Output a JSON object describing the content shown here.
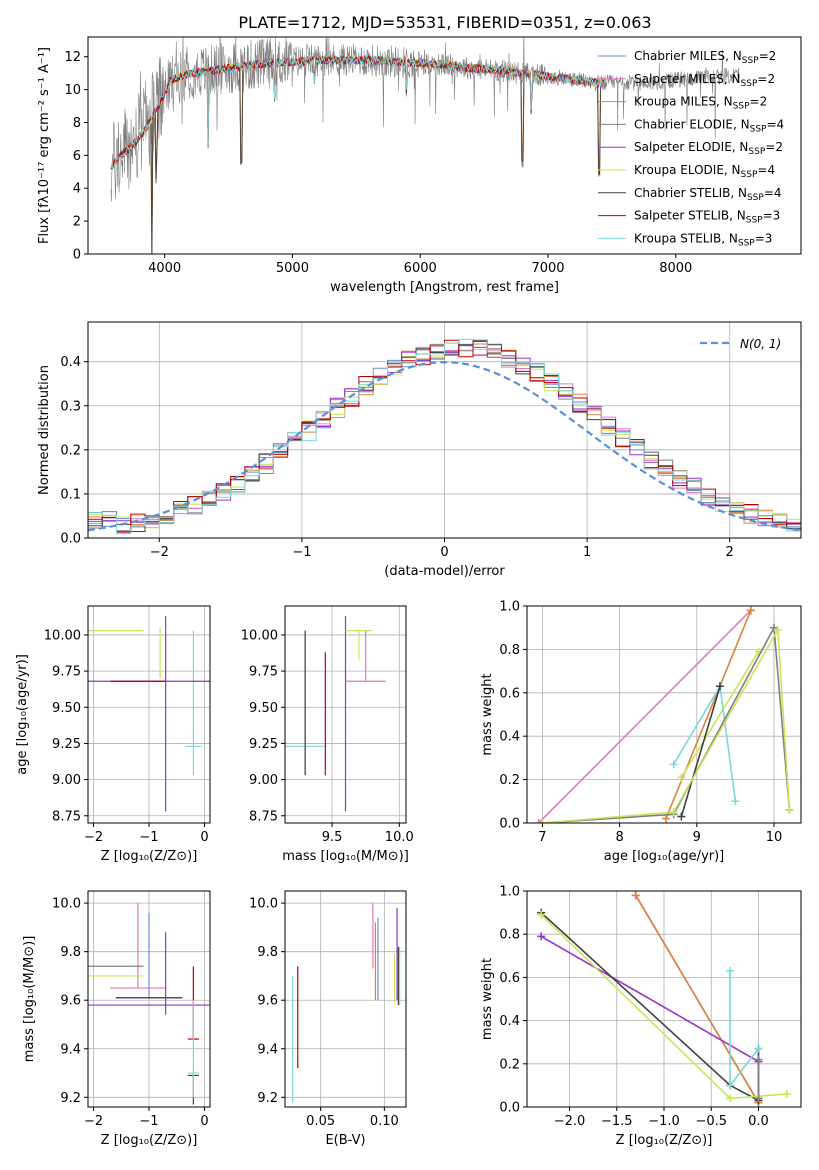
{
  "figure": {
    "title": "PLATE=1712, MJD=53531, FIBERID=0351, z=0.063"
  },
  "models": [
    {
      "name": "Chabrier MILES, N$_{SSP}$=2",
      "color": "#6a8fd4"
    },
    {
      "name": "Salpeter MILES, N$_{SSP}$=2",
      "color": "#e377c2"
    },
    {
      "name": "Kroupa MILES, N$_{SSP}$=2",
      "color": "#d9843b"
    },
    {
      "name": "Chabrier ELODIE, N$_{SSP}$=4",
      "color": "#7f7f7f"
    },
    {
      "name": "Salpeter ELODIE, N$_{SSP}$=2",
      "color": "#9932cc"
    },
    {
      "name": "Kroupa ELODIE, N$_{SSP}$=4",
      "color": "#c7e55a"
    },
    {
      "name": "Chabrier STELIB, N$_{SSP}$=4",
      "color": "#404040"
    },
    {
      "name": "Salpeter STELIB, N$_{SSP}$=3",
      "color": "#c00000"
    },
    {
      "name": "Kroupa STELIB, N$_{SSP}$=3",
      "color": "#7fd6dc"
    }
  ],
  "legend_labels": [
    {
      "base": "Chabrier MILES, N",
      "sub": "SSP",
      "tail": "=2"
    },
    {
      "base": "Salpeter MILES, N",
      "sub": "SSP",
      "tail": "=2"
    },
    {
      "base": "Kroupa MILES, N",
      "sub": "SSP",
      "tail": "=2"
    },
    {
      "base": "Chabrier ELODIE, N",
      "sub": "SSP",
      "tail": "=4"
    },
    {
      "base": "Salpeter ELODIE, N",
      "sub": "SSP",
      "tail": "=2"
    },
    {
      "base": "Kroupa ELODIE, N",
      "sub": "SSP",
      "tail": "=4"
    },
    {
      "base": "Chabrier STELIB, N",
      "sub": "SSP",
      "tail": "=4"
    },
    {
      "base": "Salpeter STELIB, N",
      "sub": "SSP",
      "tail": "=3"
    },
    {
      "base": "Kroupa STELIB, N",
      "sub": "SSP",
      "tail": "=3"
    }
  ],
  "chart_data": [
    {
      "id": "spectrum",
      "type": "line",
      "xlabel": "wavelength [Angstrom, rest frame]",
      "ylabel": "Flux [fλ10⁻¹⁷ erg cm⁻² s⁻¹ A⁻¹]",
      "xlim": [
        3400,
        8980
      ],
      "ylim": [
        0,
        13.2
      ],
      "xticks": [
        4000,
        5000,
        6000,
        7000,
        8000
      ],
      "yticks": [
        0,
        2,
        4,
        6,
        8,
        10,
        12
      ],
      "data_range": [
        3580,
        8500
      ],
      "continuum": {
        "x": [
          3580,
          3650,
          3750,
          3850,
          3950,
          4050,
          4200,
          4400,
          4600,
          4800,
          5000,
          5200,
          5400,
          5600,
          5800,
          6000,
          6200,
          6400,
          6600,
          6800,
          7000,
          7200,
          7400,
          7600,
          7800,
          8000,
          8200,
          8500
        ],
        "y": [
          5.2,
          6.0,
          6.6,
          7.6,
          9.0,
          10.6,
          11.0,
          11.2,
          11.4,
          11.6,
          11.7,
          11.8,
          11.8,
          11.8,
          11.7,
          11.6,
          11.5,
          11.3,
          11.2,
          11.0,
          10.8,
          10.6,
          10.4,
          10.4,
          10.4,
          10.6,
          10.7,
          10.9
        ]
      },
      "model_dips": [
        {
          "x": 3900,
          "depth": 13.0
        },
        {
          "x": 3935,
          "depth": 7.0
        },
        {
          "x": 4340,
          "depth": 4.5
        },
        {
          "x": 4600,
          "depth": 11.5
        },
        {
          "x": 4861,
          "depth": 2.5
        },
        {
          "x": 5175,
          "depth": 2.0
        },
        {
          "x": 5890,
          "depth": 2.5
        },
        {
          "x": 6800,
          "depth": 11.0
        },
        {
          "x": 6870,
          "depth": 3.0
        },
        {
          "x": 7400,
          "depth": 11.0
        },
        {
          "x": 7600,
          "depth": 2.0
        }
      ]
    },
    {
      "id": "residuals",
      "type": "histogram",
      "xlabel": "(data-model)/error",
      "ylabel": "Normed distribution",
      "xlim": [
        -2.5,
        2.5
      ],
      "ylim": [
        0,
        0.49
      ],
      "xticks": [
        -2,
        -1,
        0,
        1,
        2
      ],
      "yticks": [
        0.0,
        0.1,
        0.2,
        0.3,
        0.4
      ],
      "bin_width": 0.1,
      "gaussian_label": "𝒩(0, 1)",
      "gaussian_label_text": "N(0, 1)"
    },
    {
      "id": "age-vs-Z",
      "type": "errorbar",
      "xlabel": "Z [log₁₀(Z/Z⊙)]",
      "ylabel": "age  [log₁₀(age/yr)]",
      "xlim": [
        -2.1,
        0.1
      ],
      "ylim": [
        8.7,
        10.2
      ],
      "xticks": [
        -2,
        -1,
        0
      ],
      "yticks": [
        8.75,
        9.0,
        9.25,
        9.5,
        9.75,
        10.0
      ],
      "points": [
        {
          "m": 8,
          "x": -0.2,
          "y": 9.23,
          "xe": 0.15,
          "ye": [
            0.2,
            0.8
          ]
        },
        {
          "m": 5,
          "x": -1.9,
          "y": 10.03,
          "xe": 0.8,
          "ye": [
            0.0,
            0.0
          ]
        },
        {
          "m": 1,
          "x": -1.3,
          "y": 10.03,
          "xe": 0.0,
          "ye": [
            0.0,
            0.0
          ]
        },
        {
          "m": 2,
          "x": -1.1,
          "y": 10.03,
          "xe": 0.0,
          "ye": [
            0.0,
            0.0
          ]
        },
        {
          "m": 4,
          "x": -0.7,
          "y": 9.68,
          "xe": 1.5,
          "ye": [
            0.9,
            0.45
          ]
        },
        {
          "m": 7,
          "x": -1.2,
          "y": 9.68,
          "xe": 0.5,
          "ye": [
            0.0,
            0.0
          ]
        },
        {
          "m": 5,
          "x": -0.8,
          "y": 9.85,
          "xe": 0.0,
          "ye": [
            0.15,
            0.2
          ]
        }
      ]
    },
    {
      "id": "age-vs-mass",
      "type": "errorbar",
      "xlabel": "mass [log₁₀(M/M⊙)]",
      "ylabel": "",
      "xlim": [
        9.15,
        10.05
      ],
      "ylim": [
        8.7,
        10.2
      ],
      "xticks": [
        9.5,
        10.0
      ],
      "yticks": [
        8.75,
        9.0,
        9.25,
        9.5,
        9.75,
        10.0
      ],
      "points": [
        {
          "m": 8,
          "x": 9.3,
          "y": 9.23,
          "xe": 0.15,
          "ye": [
            0.2,
            0.8
          ]
        },
        {
          "m": 7,
          "x": 9.45,
          "y": 9.23,
          "xe": 0.0,
          "ye": [
            0.2,
            0.65
          ]
        },
        {
          "m": 4,
          "x": 9.6,
          "y": 9.68,
          "xe": 0.0,
          "ye": [
            0.9,
            0.45
          ]
        },
        {
          "m": 1,
          "x": 9.75,
          "y": 9.68,
          "xe": 0.15,
          "ye": [
            0.0,
            0.35
          ]
        },
        {
          "m": 5,
          "x": 9.7,
          "y": 10.03,
          "xe": 0.1,
          "ye": [
            0.2,
            0.0
          ]
        },
        {
          "m": 2,
          "x": 9.8,
          "y": 10.03,
          "xe": 0.0,
          "ye": [
            0.0,
            0.0
          ]
        },
        {
          "m": 6,
          "x": 9.3,
          "y": 9.23,
          "xe": 0.0,
          "ye": [
            0.2,
            0.8
          ]
        }
      ]
    },
    {
      "id": "weight-vs-age",
      "type": "line",
      "xlabel": "age  [log₁₀(age/yr)]",
      "ylabel": "mass weight",
      "xlim": [
        6.8,
        10.35
      ],
      "ylim": [
        0,
        1.0
      ],
      "xticks": [
        7,
        8,
        9,
        10
      ],
      "yticks": [
        0.0,
        0.2,
        0.4,
        0.6,
        0.8,
        1.0
      ],
      "series": [
        {
          "m": 1,
          "x": [
            6.95,
            9.7
          ],
          "y": [
            0.0,
            0.98
          ]
        },
        {
          "m": 2,
          "x": [
            8.6,
            9.7
          ],
          "y": [
            0.02,
            0.98
          ]
        },
        {
          "m": 5,
          "x": [
            8.8,
            9.8
          ],
          "y": [
            0.21,
            0.79
          ]
        },
        {
          "m": 8,
          "x": [
            8.7,
            9.3,
            9.5
          ],
          "y": [
            0.27,
            0.63,
            0.1
          ]
        },
        {
          "m": 6,
          "x": [
            8.8,
            9.3
          ],
          "y": [
            0.03,
            0.63
          ]
        },
        {
          "m": 3,
          "x": [
            7.0,
            8.7,
            10.0,
            10.2
          ],
          "y": [
            0.0,
            0.04,
            0.9,
            0.06
          ]
        },
        {
          "m": 5,
          "x": [
            7.0,
            8.7,
            10.05,
            10.2
          ],
          "y": [
            0.0,
            0.05,
            0.89,
            0.06
          ]
        }
      ]
    },
    {
      "id": "mass-vs-Z",
      "type": "errorbar",
      "xlabel": "Z [log₁₀(Z/Z⊙)]",
      "ylabel": "mass [log₁₀(M/M⊙)]",
      "xlim": [
        -2.1,
        0.1
      ],
      "ylim": [
        9.16,
        10.05
      ],
      "xticks": [
        -2,
        -1,
        0
      ],
      "yticks": [
        9.2,
        9.4,
        9.6,
        9.8,
        10.0
      ],
      "points": [
        {
          "m": 1,
          "x": -1.2,
          "y": 9.65,
          "xe": 0.5,
          "ye": [
            0.0,
            0.35
          ]
        },
        {
          "m": 0,
          "x": -1.0,
          "y": 9.61,
          "xe": 0.6,
          "ye": [
            0.0,
            0.35
          ]
        },
        {
          "m": 6,
          "x": -1.0,
          "y": 9.61,
          "xe": 0.6,
          "ye": [
            0.0,
            0.0
          ]
        },
        {
          "m": 5,
          "x": -1.6,
          "y": 9.7,
          "xe": 0.5,
          "ye": [
            0.0,
            0.0
          ]
        },
        {
          "m": 3,
          "x": -1.6,
          "y": 9.74,
          "xe": 0.5,
          "ye": [
            0.0,
            0.0
          ]
        },
        {
          "m": 4,
          "x": -0.9,
          "y": 9.58,
          "xe": 1.2,
          "ye": [
            0.0,
            0.0
          ]
        },
        {
          "m": 4,
          "x": -0.7,
          "y": 9.62,
          "xe": 0.0,
          "ye": [
            0.08,
            0.26
          ]
        },
        {
          "m": 7,
          "x": -0.2,
          "y": 9.44,
          "xe": 0.1,
          "ye": [
            0.0,
            0.3
          ]
        },
        {
          "m": 6,
          "x": -0.2,
          "y": 9.29,
          "xe": 0.1,
          "ye": [
            0.12,
            0.0
          ]
        },
        {
          "m": 8,
          "x": -0.2,
          "y": 9.3,
          "xe": 0.1,
          "ye": [
            0.1,
            0.3
          ]
        }
      ]
    },
    {
      "id": "mass-vs-ebv",
      "type": "errorbar",
      "xlabel": "E(B-V)",
      "ylabel": "",
      "xlim": [
        0.022,
        0.117
      ],
      "ylim": [
        9.16,
        10.05
      ],
      "xticks": [
        0.05,
        0.1
      ],
      "yticks": [
        9.2,
        9.4,
        9.6,
        9.8,
        10.0
      ],
      "points": [
        {
          "m": 8,
          "x": 0.028,
          "y": 9.4,
          "xe": 0.0,
          "ye": [
            0.22,
            0.3
          ]
        },
        {
          "m": 7,
          "x": 0.032,
          "y": 9.52,
          "xe": 0.0,
          "ye": [
            0.2,
            0.22
          ]
        },
        {
          "m": 1,
          "x": 0.091,
          "y": 9.85,
          "xe": 0.0,
          "ye": [
            0.12,
            0.15
          ]
        },
        {
          "m": 2,
          "x": 0.093,
          "y": 9.77,
          "xe": 0.0,
          "ye": [
            0.17,
            0.15
          ]
        },
        {
          "m": 0,
          "x": 0.095,
          "y": 9.79,
          "xe": 0.0,
          "ye": [
            0.19,
            0.15
          ]
        },
        {
          "m": 5,
          "x": 0.108,
          "y": 9.69,
          "xe": 0.0,
          "ye": [
            0.1,
            0.1
          ]
        },
        {
          "m": 4,
          "x": 0.11,
          "y": 9.8,
          "xe": 0.0,
          "ye": [
            0.2,
            0.18
          ]
        },
        {
          "m": 6,
          "x": 0.111,
          "y": 9.7,
          "xe": 0.0,
          "ye": [
            0.12,
            0.12
          ]
        },
        {
          "m": 8,
          "x": 0.112,
          "y": 9.7,
          "xe": 0.0,
          "ye": [
            0.12,
            0.12
          ]
        }
      ]
    },
    {
      "id": "weight-vs-Z",
      "type": "line",
      "xlabel": "Z [log₁₀(Z/Z⊙)]",
      "ylabel": "mass weight",
      "xlim": [
        -2.45,
        0.45
      ],
      "ylim": [
        0,
        1.0
      ],
      "xticks": [
        -2.0,
        -1.5,
        -1.0,
        -0.5,
        0.0
      ],
      "yticks": [
        0.0,
        0.2,
        0.4,
        0.6,
        0.8,
        1.0
      ],
      "series": [
        {
          "m": 1,
          "x": [
            -1.3,
            0.0
          ],
          "y": [
            0.98,
            0.02
          ]
        },
        {
          "m": 2,
          "x": [
            -1.3,
            0.0
          ],
          "y": [
            0.98,
            0.02
          ]
        },
        {
          "m": 4,
          "x": [
            -2.3,
            0.0
          ],
          "y": [
            0.79,
            0.21
          ]
        },
        {
          "m": 6,
          "x": [
            -2.3,
            -0.3,
            0.0,
            0.0
          ],
          "y": [
            0.9,
            0.1,
            0.03,
            0.27
          ]
        },
        {
          "m": 8,
          "x": [
            -0.3,
            -0.3,
            0.0
          ],
          "y": [
            0.63,
            0.1,
            0.27
          ]
        },
        {
          "m": 5,
          "x": [
            -2.3,
            -0.3,
            0.0,
            0.3
          ],
          "y": [
            0.89,
            0.04,
            0.05,
            0.06
          ]
        },
        {
          "m": 3,
          "x": [
            0.0,
            0.0
          ],
          "y": [
            0.22,
            0.04
          ]
        }
      ]
    }
  ]
}
